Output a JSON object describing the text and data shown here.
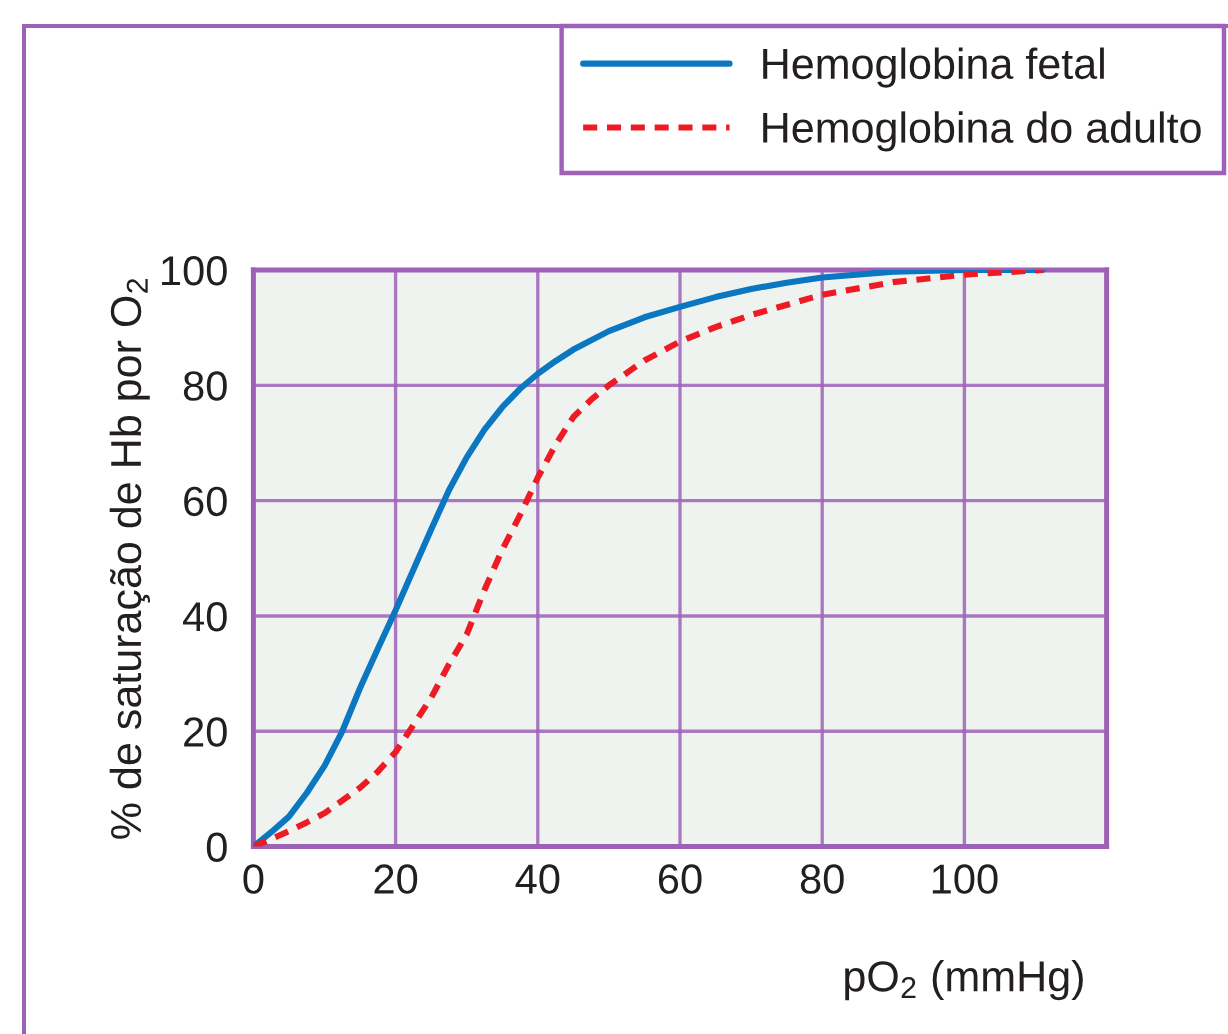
{
  "chart_data": {
    "type": "line",
    "xlabel": "pO$_{2}$ (mmHg)",
    "ylabel": "% de saturação de Hb por O$_{2}$",
    "xlim": [
      0,
      120
    ],
    "ylim": [
      0,
      100
    ],
    "xticks": [
      0,
      20,
      40,
      60,
      80,
      100
    ],
    "yticks": [
      0,
      20,
      40,
      60,
      80,
      100
    ],
    "grid": true,
    "legend": "top right",
    "marker": "none",
    "series": [
      {
        "name": "Hemoglobina fetal",
        "color": "#0a77c0",
        "line_style": "solid",
        "x": [
          0,
          2.5,
          5,
          7.5,
          10,
          12.5,
          15,
          17.5,
          20,
          22.5,
          25,
          27.5,
          30,
          32.5,
          35,
          37.5,
          40,
          42.5,
          45,
          50,
          55,
          60,
          65,
          70,
          75,
          80,
          90,
          100,
          111
        ],
        "values": [
          0,
          2.5,
          5.2,
          9.3,
          14,
          20,
          27.5,
          34.3,
          41,
          48,
          55,
          61.8,
          67.5,
          72.3,
          76.2,
          79.4,
          82,
          84.2,
          86.2,
          89.4,
          91.8,
          93.6,
          95.3,
          96.7,
          97.8,
          98.7,
          99.7,
          100,
          100
        ]
      },
      {
        "name": "Hemoglobina do adulto",
        "color": "#ed1c24",
        "line_style": "dashed",
        "x": [
          0,
          2.5,
          5,
          7.5,
          10,
          12.5,
          15,
          17.5,
          20,
          22.5,
          25,
          27.5,
          30,
          32.5,
          35,
          37.5,
          40,
          42.5,
          45,
          47.5,
          50,
          55,
          60,
          65,
          70,
          80,
          90,
          100,
          111
        ],
        "values": [
          0,
          1.3,
          2.7,
          4.2,
          5.8,
          8,
          10.2,
          13,
          16.4,
          21.1,
          25.8,
          31.6,
          36.8,
          44.5,
          51.5,
          57.5,
          64,
          69.7,
          74.5,
          77.5,
          80,
          84.3,
          87.6,
          90.1,
          92.2,
          95.7,
          97.9,
          99.2,
          100
        ]
      }
    ]
  }
}
